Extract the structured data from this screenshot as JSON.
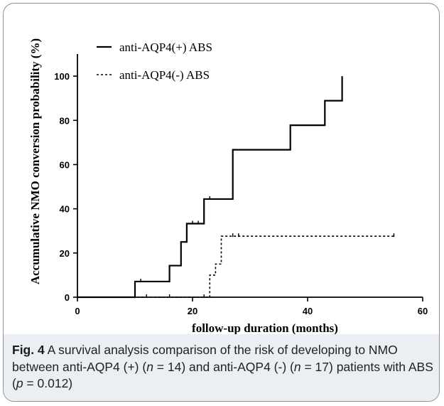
{
  "chart_data": {
    "type": "line",
    "subtype": "step",
    "xlabel": "follow-up duration (months)",
    "ylabel": "Accumulative NMO conversion probability (%)",
    "xlim": [
      0,
      60
    ],
    "ylim": [
      0,
      110
    ],
    "xticks": [
      0,
      20,
      40,
      60
    ],
    "yticks": [
      0,
      20,
      40,
      60,
      80,
      100
    ],
    "grid": false,
    "legend_position": "top-left",
    "series": [
      {
        "name": "anti-AQP4(+) ABS",
        "style": "solid",
        "color": "#000000",
        "steps": [
          [
            0,
            0
          ],
          [
            10,
            7.1
          ],
          [
            16,
            14.3
          ],
          [
            18,
            25
          ],
          [
            19,
            33.3
          ],
          [
            22,
            44.4
          ],
          [
            27,
            66.7
          ],
          [
            37,
            77.8
          ],
          [
            43,
            88.9
          ],
          [
            46,
            100
          ]
        ],
        "censored": [
          [
            11,
            7.1
          ],
          [
            20,
            33.3
          ],
          [
            21,
            33.3
          ],
          [
            23,
            44.4
          ]
        ]
      },
      {
        "name": "anti-AQP4(-) ABS",
        "style": "dashed",
        "color": "#000000",
        "steps": [
          [
            0,
            0
          ],
          [
            23,
            10
          ],
          [
            24,
            15
          ],
          [
            25,
            27.6
          ],
          [
            55,
            27.6
          ]
        ],
        "censored": [
          [
            12,
            0
          ],
          [
            16,
            0
          ],
          [
            22,
            0
          ],
          [
            27,
            27.6
          ],
          [
            28,
            27.6
          ],
          [
            55,
            27.6
          ]
        ]
      }
    ]
  },
  "caption": {
    "label": "Fig. 4",
    "p1": " A survival analysis comparison of the risk of developing to NMO between anti-AQP4 (+) (",
    "n1_var": "n",
    "n1_val": " = 14) and anti-AQP4 (-) (",
    "n2_var": "n",
    "n2_val": " = 17) patients with ABS (",
    "p_var": "p",
    "p_val": " = 0.012)"
  }
}
